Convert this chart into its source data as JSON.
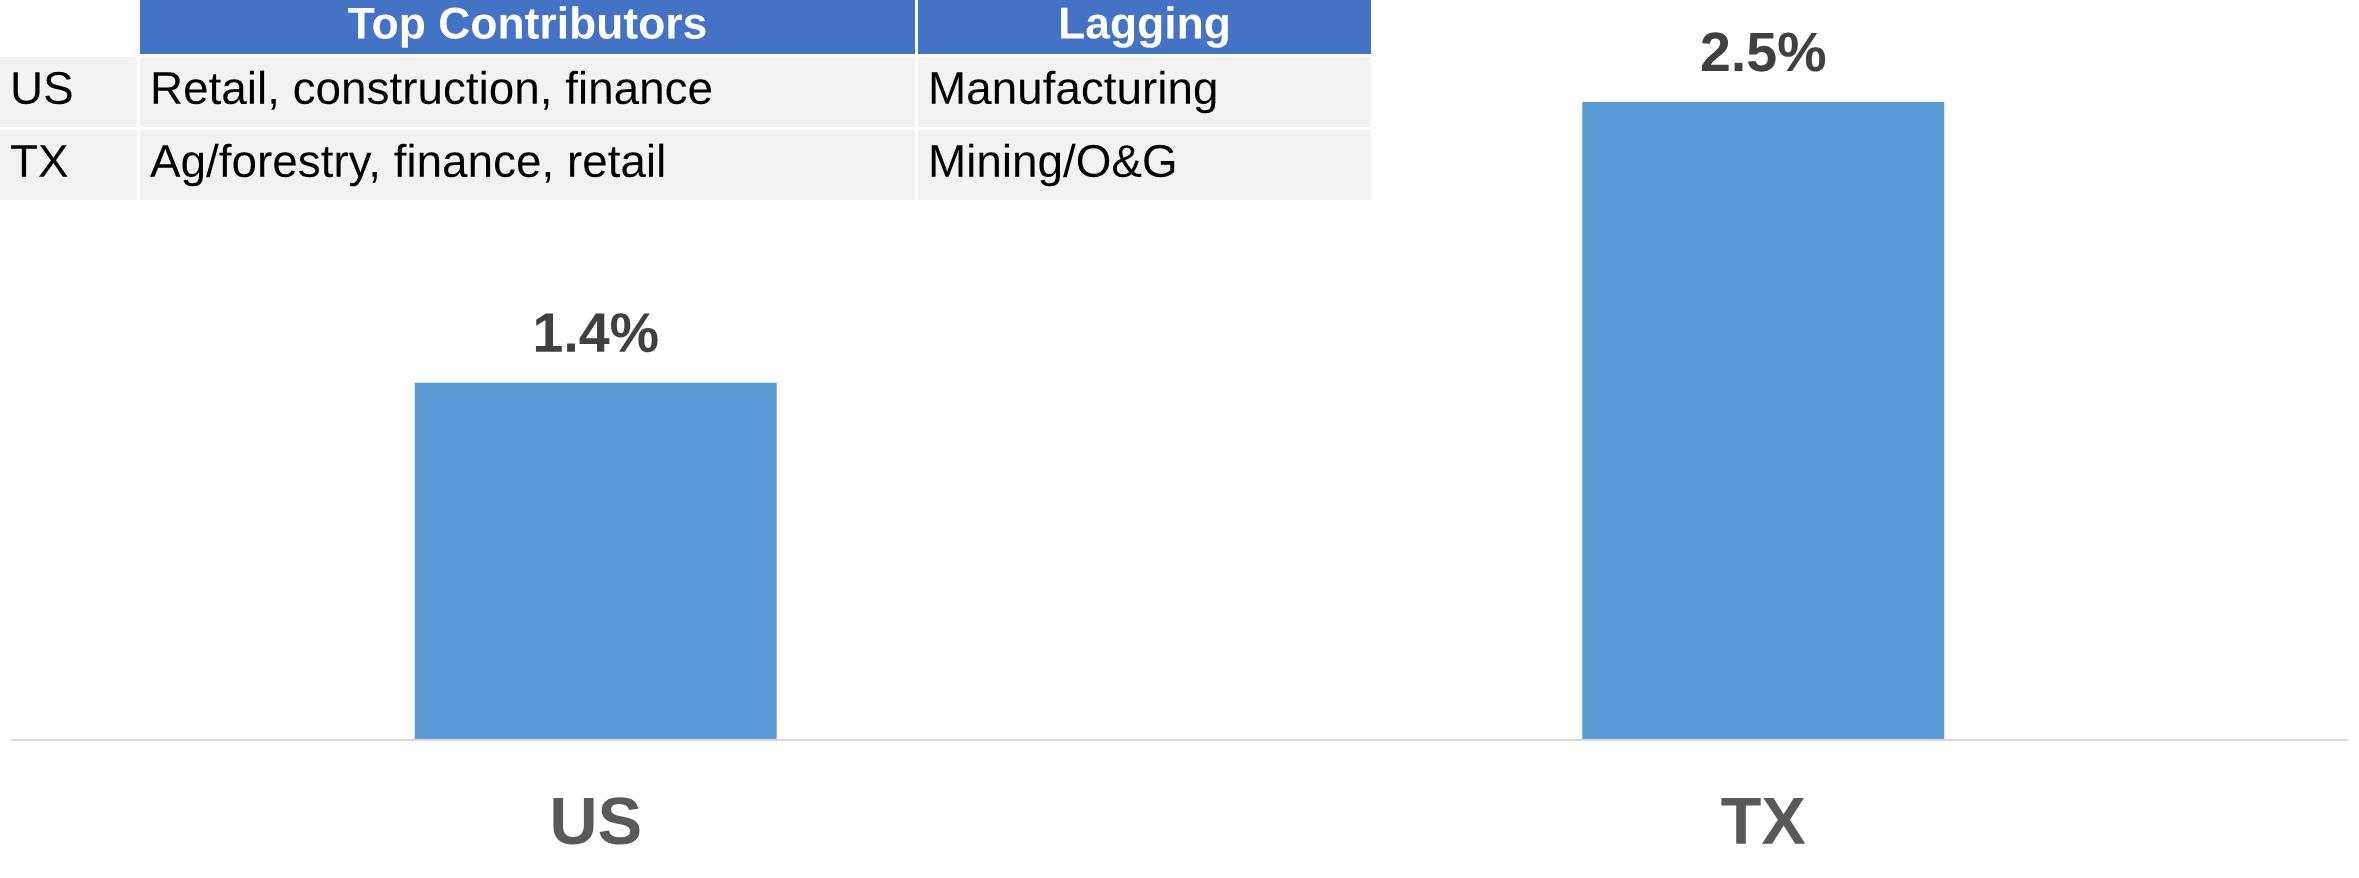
{
  "chart_data": {
    "type": "bar",
    "categories": [
      "US",
      "TX"
    ],
    "values": [
      1.4,
      2.5
    ],
    "color": "#5b9bd5",
    "value_labels": [
      "1.4%",
      "2.5%"
    ],
    "tick_labels": "x",
    "grid": false,
    "legend": false,
    "annotations": [
      "Top Contributors",
      "Lagging",
      "US",
      "Retail, construction, finance",
      "Manufacturing",
      "TX",
      "Ag/forestry, finance, retail",
      "Mining/O&G"
    ]
  }
}
